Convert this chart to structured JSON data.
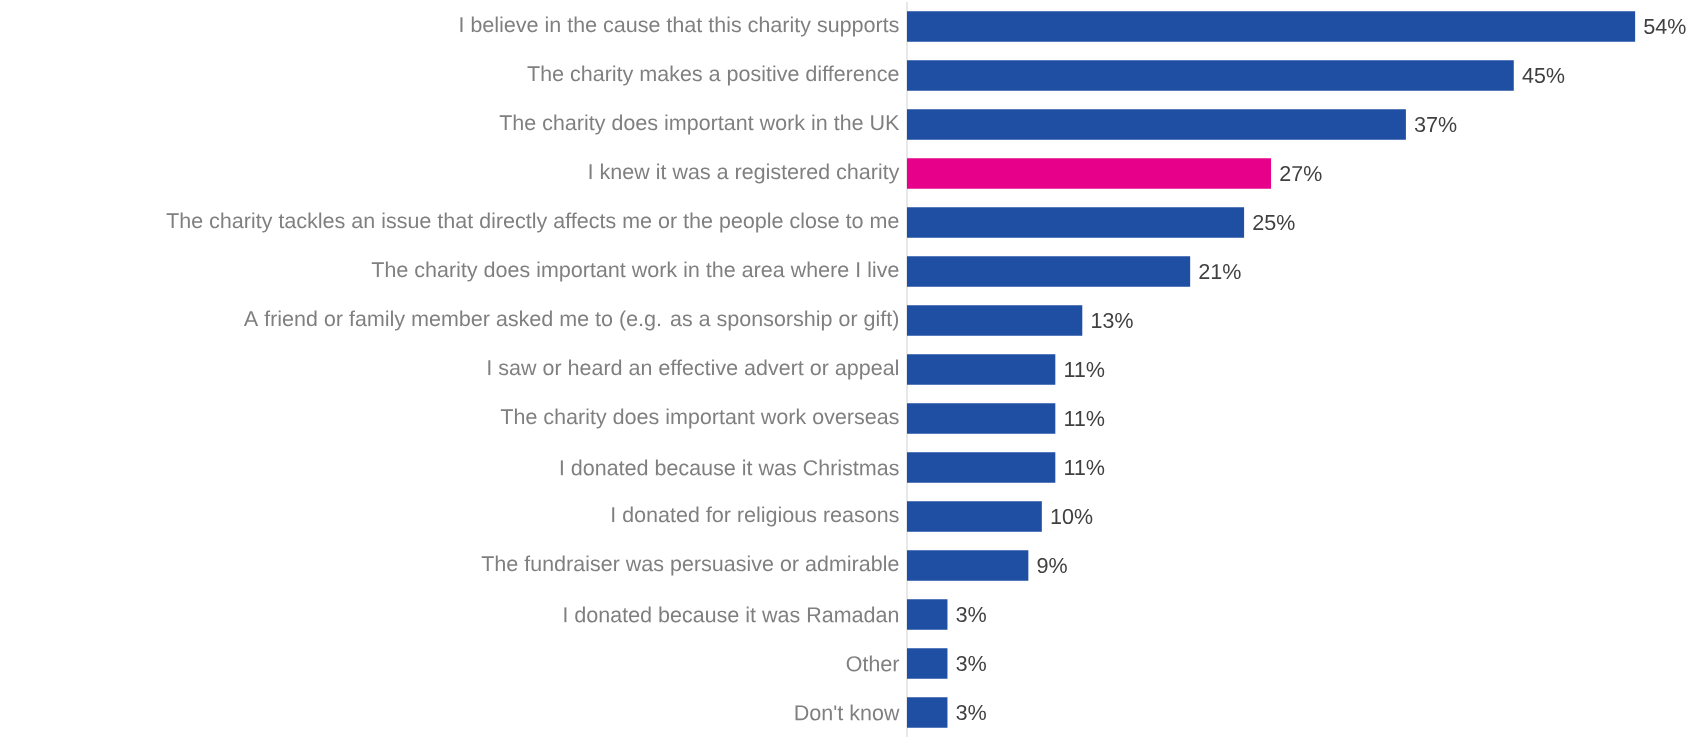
{
  "chart_data": {
    "type": "bar",
    "orientation": "horizontal",
    "categories": [
      "I believe in the cause that this charity supports",
      "The charity makes a positive difference",
      "The charity does important work in the UK",
      "I knew it was a registered charity",
      "The charity tackles an issue that directly affects me or the people close to me",
      "The charity does important work in the area where I live",
      "A friend or family member asked me to (e.g. as a sponsorship or gift)",
      "I saw or heard an effective advert or appeal",
      "The charity does important work overseas",
      "I donated because it was Christmas",
      "I donated for religious reasons",
      "The fundraiser was persuasive or admirable",
      "I donated because it was Ramadan",
      "Other",
      "Don't know"
    ],
    "values": [
      54,
      45,
      37,
      27,
      25,
      21,
      13,
      11,
      11,
      11,
      10,
      9,
      3,
      3,
      3
    ],
    "value_labels": [
      "54%",
      "45%",
      "37%",
      "27%",
      "25%",
      "21%",
      "13%",
      "11%",
      "11%",
      "11%",
      "10%",
      "9%",
      "3%",
      "3%",
      "3%"
    ],
    "colors": [
      "#1f4fa3",
      "#1f4fa3",
      "#1f4fa3",
      "#e6008a",
      "#1f4fa3",
      "#1f4fa3",
      "#1f4fa3",
      "#1f4fa3",
      "#1f4fa3",
      "#1f4fa3",
      "#1f4fa3",
      "#1f4fa3",
      "#1f4fa3",
      "#1f4fa3",
      "#1f4fa3"
    ]
  }
}
